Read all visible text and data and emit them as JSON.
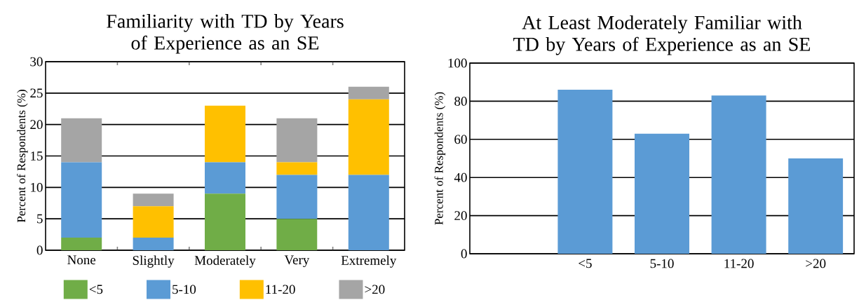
{
  "chart_data": [
    {
      "type": "bar",
      "title": "Familiarity with TD by Years of Experience as an SE",
      "ylabel": "Percent of Respondents (%)",
      "categories": [
        "None",
        "Slightly",
        "Moderately",
        "Very",
        "Extremely"
      ],
      "stacked": true,
      "series": [
        {
          "name": "<5",
          "color": "#70ad47",
          "values": [
            2,
            0,
            9,
            5,
            0
          ]
        },
        {
          "name": "5-10",
          "color": "#5b9bd5",
          "values": [
            12,
            2,
            5,
            7,
            12
          ]
        },
        {
          "name": "11-20",
          "color": "#ffc000",
          "values": [
            0,
            5,
            9,
            2,
            12
          ]
        },
        {
          "name": ">20",
          "color": "#a5a5a5",
          "values": [
            7,
            2,
            0,
            7,
            2
          ]
        }
      ],
      "ylim": [
        0,
        30
      ],
      "yticks": [
        0,
        5,
        10,
        15,
        20,
        25,
        30
      ],
      "grid": "y",
      "legend": "bottom"
    },
    {
      "type": "bar",
      "title": "At Least Moderately Familiar with TD by Years of Experience as an SE",
      "ylabel": "Percent of Respondents (%)",
      "categories": [
        "<5",
        "5-10",
        "11-20",
        ">20"
      ],
      "values": [
        86,
        63,
        83,
        50
      ],
      "color": "#5b9bd5",
      "ylim": [
        0,
        100
      ],
      "yticks": [
        0,
        20,
        40,
        60,
        80,
        100
      ],
      "grid": "y"
    }
  ]
}
